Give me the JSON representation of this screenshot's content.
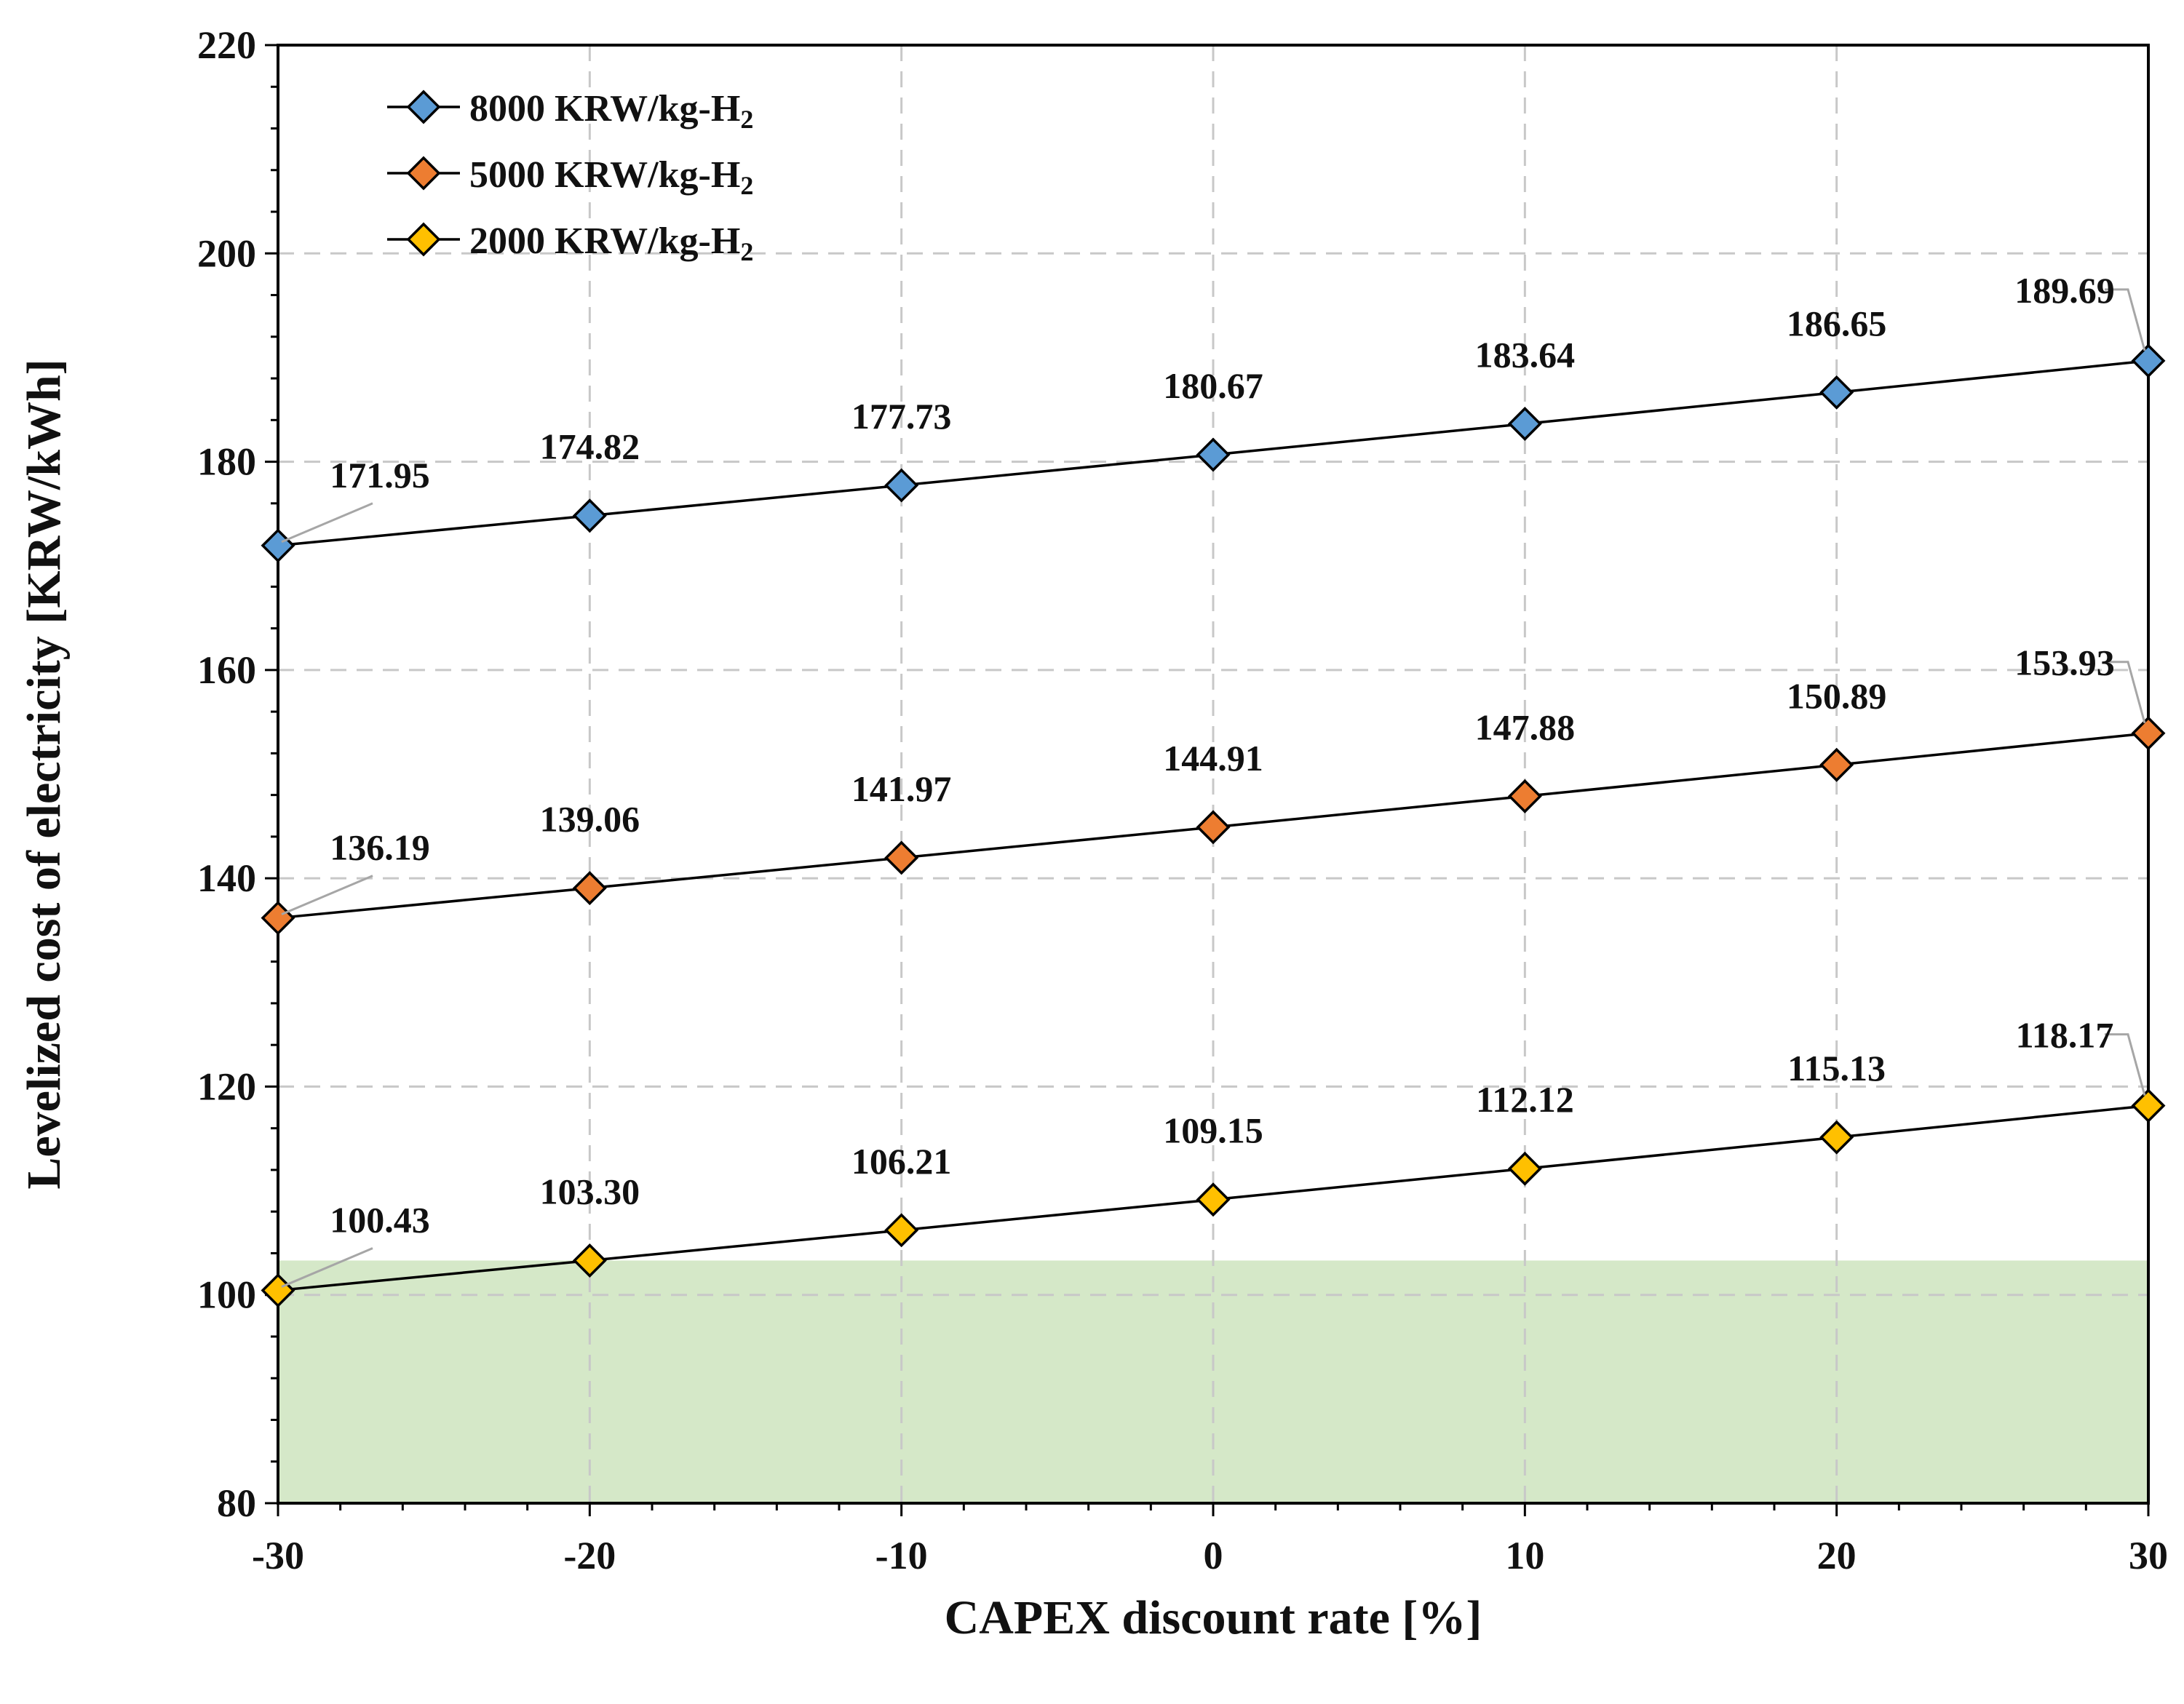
{
  "chart_data": {
    "type": "line",
    "title": "",
    "xlabel": "CAPEX discount rate [%]",
    "ylabel": "Levelized cost of electricity [KRW/kWh]",
    "x": [
      -30,
      -20,
      -10,
      0,
      10,
      20,
      30
    ],
    "xlim": [
      -30,
      30
    ],
    "ylim": [
      80,
      220
    ],
    "x_ticks": [
      -30,
      -20,
      -10,
      0,
      10,
      20,
      30
    ],
    "y_ticks": [
      80,
      100,
      120,
      140,
      160,
      180,
      200,
      220
    ],
    "grid": true,
    "legend_position": "top-left",
    "shaded_region": {
      "y_from": 80,
      "y_to": 103.3,
      "color": "#d5e8c8"
    },
    "series": [
      {
        "name": "8000 KRW/kg-H",
        "name_subscript": "2",
        "color": "#5b9bd5",
        "values": [
          171.95,
          174.82,
          177.73,
          180.67,
          183.64,
          186.65,
          189.69
        ],
        "labels": [
          "171.95",
          "174.82",
          "177.73",
          "180.67",
          "183.64",
          "186.65",
          "189.69"
        ]
      },
      {
        "name": "5000 KRW/kg-H",
        "name_subscript": "2",
        "color": "#ed7d31",
        "values": [
          136.19,
          139.06,
          141.97,
          144.91,
          147.88,
          150.89,
          153.93
        ],
        "labels": [
          "136.19",
          "139.06",
          "141.97",
          "144.91",
          "147.88",
          "150.89",
          "153.93"
        ]
      },
      {
        "name": "2000 KRW/kg-H",
        "name_subscript": "2",
        "color": "#ffc000",
        "values": [
          100.43,
          103.3,
          106.21,
          109.15,
          112.12,
          115.13,
          118.17
        ],
        "labels": [
          "100.43",
          "103.30",
          "106.21",
          "109.15",
          "112.12",
          "115.13",
          "118.17"
        ]
      }
    ]
  }
}
